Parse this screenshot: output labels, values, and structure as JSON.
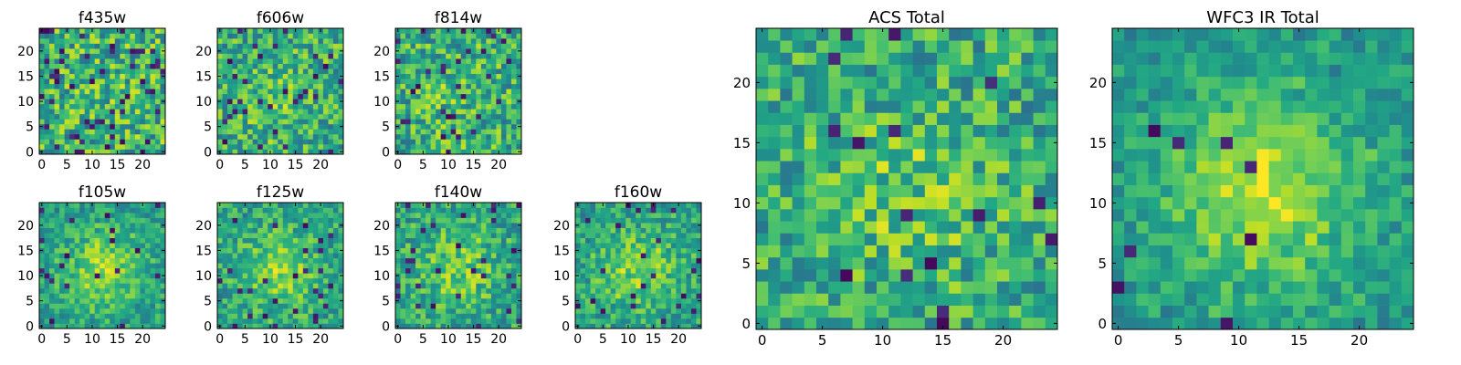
{
  "chart_data": [
    {
      "type": "heatmap",
      "title": "f435w",
      "xticks": [
        0,
        5,
        10,
        15,
        20
      ],
      "yticks": [
        0,
        5,
        10,
        15,
        20
      ],
      "xlim": [
        -0.5,
        24.5
      ],
      "ylim": [
        -0.5,
        24.5
      ],
      "grid_size": 25,
      "colormap": "viridis",
      "seed": 11,
      "center_bias": 0.05,
      "dark_fraction": 0.08
    },
    {
      "type": "heatmap",
      "title": "f606w",
      "xticks": [
        0,
        5,
        10,
        15,
        20
      ],
      "yticks": [
        0,
        5,
        10,
        15,
        20
      ],
      "xlim": [
        -0.5,
        24.5
      ],
      "ylim": [
        -0.5,
        24.5
      ],
      "grid_size": 25,
      "colormap": "viridis",
      "seed": 23,
      "center_bias": 0.15,
      "dark_fraction": 0.05
    },
    {
      "type": "heatmap",
      "title": "f814w",
      "xticks": [
        0,
        5,
        10,
        15,
        20
      ],
      "yticks": [
        0,
        5,
        10,
        15,
        20
      ],
      "xlim": [
        -0.5,
        24.5
      ],
      "ylim": [
        -0.5,
        24.5
      ],
      "grid_size": 25,
      "colormap": "viridis",
      "seed": 37,
      "center_bias": 0.1,
      "dark_fraction": 0.06
    },
    {
      "type": "heatmap",
      "title": "f105w",
      "xticks": [
        0,
        5,
        10,
        15,
        20
      ],
      "yticks": [
        0,
        5,
        10,
        15,
        20
      ],
      "xlim": [
        -0.5,
        24.5
      ],
      "ylim": [
        -0.5,
        24.5
      ],
      "grid_size": 25,
      "colormap": "viridis",
      "seed": 41,
      "center_bias": 0.45,
      "dark_fraction": 0.03
    },
    {
      "type": "heatmap",
      "title": "f125w",
      "xticks": [
        0,
        5,
        10,
        15,
        20
      ],
      "yticks": [
        0,
        5,
        10,
        15,
        20
      ],
      "xlim": [
        -0.5,
        24.5
      ],
      "ylim": [
        -0.5,
        24.5
      ],
      "grid_size": 25,
      "colormap": "viridis",
      "seed": 53,
      "center_bias": 0.35,
      "dark_fraction": 0.04
    },
    {
      "type": "heatmap",
      "title": "f140w",
      "xticks": [
        0,
        5,
        10,
        15,
        20
      ],
      "yticks": [
        0,
        5,
        10,
        15,
        20
      ],
      "xlim": [
        -0.5,
        24.5
      ],
      "ylim": [
        -0.5,
        24.5
      ],
      "grid_size": 25,
      "colormap": "viridis",
      "seed": 67,
      "center_bias": 0.3,
      "dark_fraction": 0.04
    },
    {
      "type": "heatmap",
      "title": "f160w",
      "xticks": [
        0,
        5,
        10,
        15,
        20
      ],
      "yticks": [
        0,
        5,
        10,
        15,
        20
      ],
      "xlim": [
        -0.5,
        24.5
      ],
      "ylim": [
        -0.5,
        24.5
      ],
      "grid_size": 25,
      "colormap": "viridis",
      "seed": 79,
      "center_bias": 0.35,
      "dark_fraction": 0.04
    },
    {
      "type": "heatmap",
      "title": "ACS Total",
      "xticks": [
        0,
        5,
        10,
        15,
        20
      ],
      "yticks": [
        0,
        5,
        10,
        15,
        20
      ],
      "xlim": [
        -0.5,
        24.5
      ],
      "ylim": [
        -0.5,
        24.5
      ],
      "grid_size": 25,
      "colormap": "viridis",
      "seed": 83,
      "center_bias": 0.2,
      "dark_fraction": 0.03
    },
    {
      "type": "heatmap",
      "title": "WFC3 IR Total",
      "xticks": [
        0,
        5,
        10,
        15,
        20
      ],
      "yticks": [
        0,
        5,
        10,
        15,
        20
      ],
      "xlim": [
        -0.5,
        24.5
      ],
      "ylim": [
        -0.5,
        24.5
      ],
      "grid_size": 25,
      "colormap": "viridis",
      "seed": 97,
      "center_bias": 0.55,
      "dark_fraction": 0.02
    }
  ]
}
